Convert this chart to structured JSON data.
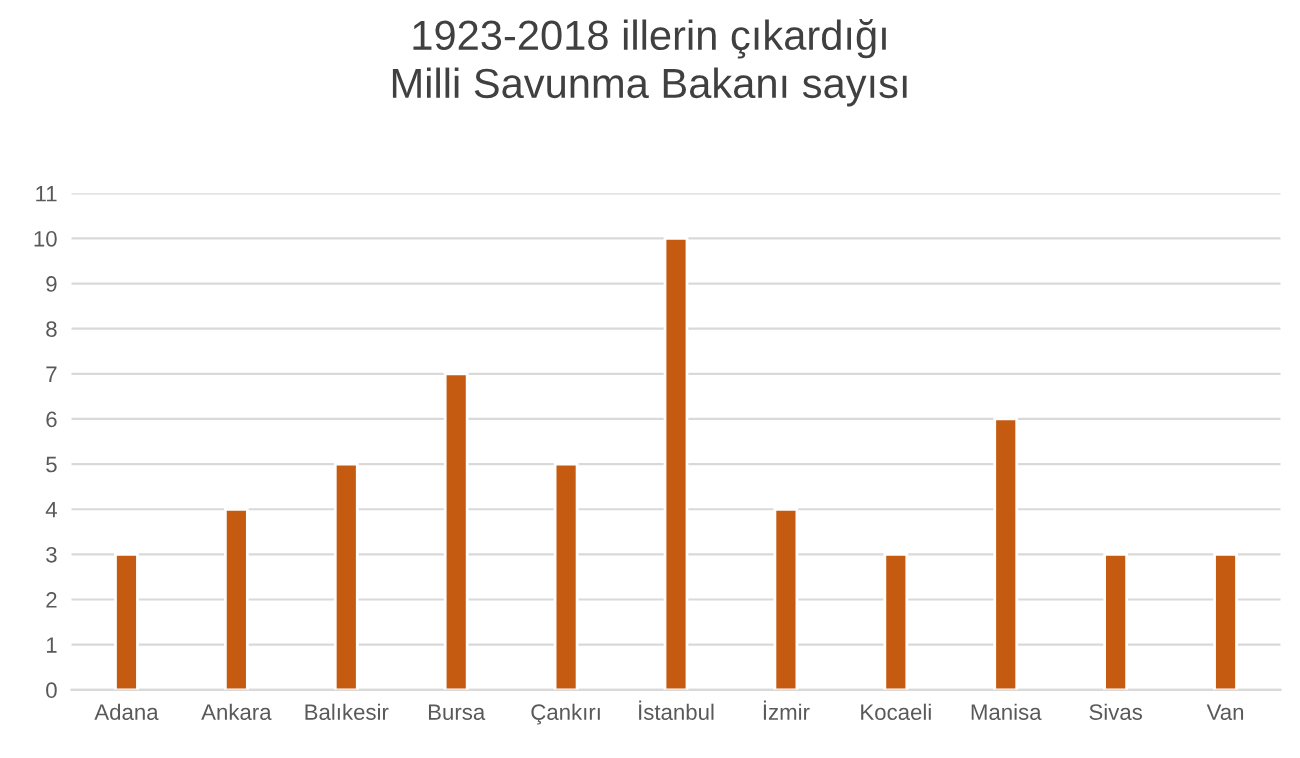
{
  "chart_data": {
    "type": "bar",
    "title": "1923-2018 illerin çıkardığı\nMilli Savunma Bakanı sayısı",
    "categories": [
      "Adana",
      "Ankara",
      "Balıkesir",
      "Bursa",
      "Çankırı",
      "İstanbul",
      "İzmir",
      "Kocaeli",
      "Manisa",
      "Sivas",
      "Van"
    ],
    "values": [
      3,
      4,
      5,
      7,
      5,
      10,
      4,
      3,
      6,
      3,
      3
    ],
    "color": "#c55a11",
    "ylim": [
      0,
      11
    ],
    "yticks": [
      0,
      1,
      2,
      3,
      4,
      5,
      6,
      7,
      8,
      9,
      10,
      11
    ],
    "grid": "y"
  }
}
